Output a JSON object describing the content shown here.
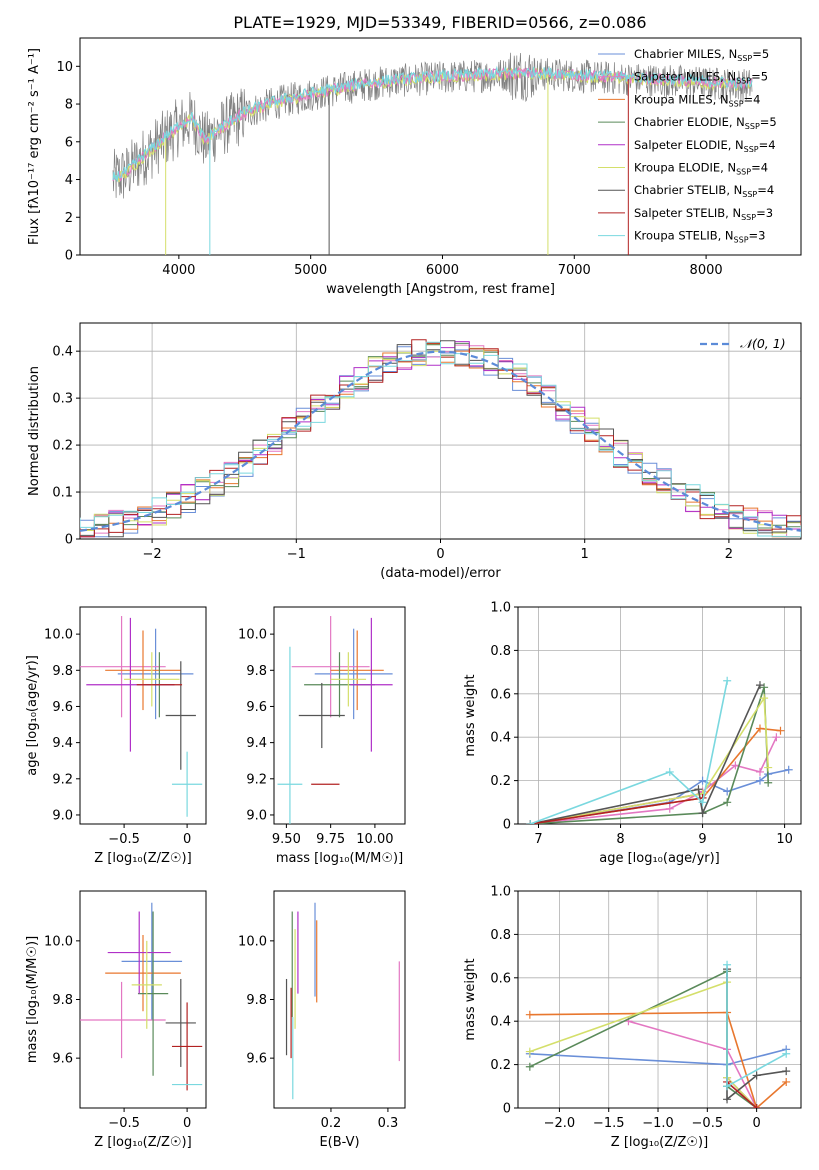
{
  "page_title": "PLATE=1929, MJD=53349, FIBERID=0566, z=0.086",
  "colors": {
    "chabrier_miles": "#6a8fd8",
    "salpeter_miles": "#e377c2",
    "kroupa_miles": "#e8772e",
    "chabrier_elodie": "#5a8a5a",
    "salpeter_elodie": "#b030c8",
    "kroupa_elodie": "#d4df6a",
    "chabrier_stelib": "#555555",
    "salpeter_stelib": "#b22222",
    "kroupa_stelib": "#7ad8df",
    "gaussian": "#5b8bd8",
    "grid": "#b0b0b0"
  },
  "chart_data": [
    {
      "id": "spectrum",
      "type": "line",
      "xlabel": "wavelength [Angstrom, rest frame]",
      "ylabel": "Flux [fλ10⁻¹⁷ erg cm⁻² s⁻¹ A⁻¹]",
      "xlim": [
        3250,
        8720
      ],
      "ylim": [
        0,
        11.5
      ],
      "xticks": [
        4000,
        5000,
        6000,
        7000,
        8000
      ],
      "yticks": [
        0,
        2,
        4,
        6,
        8,
        10
      ],
      "grid": false,
      "legend_placement": "right",
      "legend": [
        {
          "label": "Chabrier MILES, N",
          "sub": "SSP",
          "eq": "=5",
          "color_key": "chabrier_miles"
        },
        {
          "label": "Salpeter MILES, N",
          "sub": "SSP",
          "eq": "=5",
          "color_key": "salpeter_miles"
        },
        {
          "label": "Kroupa MILES, N",
          "sub": "SSP",
          "eq": "=4",
          "color_key": "kroupa_miles"
        },
        {
          "label": "Chabrier ELODIE, N",
          "sub": "SSP",
          "eq": "=5",
          "color_key": "chabrier_elodie"
        },
        {
          "label": "Salpeter ELODIE, N",
          "sub": "SSP",
          "eq": "=4",
          "color_key": "salpeter_elodie"
        },
        {
          "label": "Kroupa ELODIE, N",
          "sub": "SSP",
          "eq": "=4",
          "color_key": "kroupa_elodie"
        },
        {
          "label": "Chabrier STELIB, N",
          "sub": "SSP",
          "eq": "=4",
          "color_key": "chabrier_stelib"
        },
        {
          "label": "Salpeter STELIB, N",
          "sub": "SSP",
          "eq": "=3",
          "color_key": "salpeter_stelib"
        },
        {
          "label": "Kroupa STELIB, N",
          "sub": "SSP",
          "eq": "=3",
          "color_key": "kroupa_stelib"
        }
      ],
      "data_trend": {
        "x": [
          3500,
          3600,
          3700,
          3800,
          3900,
          4000,
          4100,
          4200,
          4300,
          4500,
          4700,
          5000,
          5300,
          5600,
          6000,
          6300,
          6600,
          6900,
          7200,
          7500,
          7800,
          8000,
          8300
        ],
        "y": [
          4.0,
          4.3,
          5.0,
          5.6,
          6.2,
          6.8,
          7.2,
          6.0,
          6.6,
          7.5,
          8.0,
          8.5,
          8.9,
          9.2,
          9.4,
          9.5,
          9.6,
          9.55,
          9.4,
          9.3,
          9.2,
          9.1,
          9.0
        ]
      }
    },
    {
      "id": "residuals",
      "type": "histogram",
      "xlabel": "(data-model)/error",
      "ylabel": "Normed distribution",
      "xlim": [
        -2.5,
        2.5
      ],
      "ylim": [
        0,
        0.46
      ],
      "xticks": [
        -2,
        -1,
        0,
        1,
        2
      ],
      "yticks": [
        0.0,
        0.1,
        0.2,
        0.3,
        0.4
      ],
      "grid": true,
      "legend": [
        {
          "label": "𝒩(0, 1)",
          "color_key": "gaussian"
        }
      ],
      "legend_placement": "top-right"
    },
    {
      "id": "age_vs_Z",
      "type": "errorbar",
      "xlabel": "Z [log₁₀(Z/Z☉)]",
      "ylabel": "age  [log₁₀(age/yr)]",
      "xlim": [
        -0.85,
        0.15
      ],
      "ylim": [
        8.95,
        10.15
      ],
      "xticks": [
        -0.5,
        0.0
      ],
      "yticks": [
        9.0,
        9.2,
        9.4,
        9.6,
        9.8,
        10.0
      ],
      "points": [
        {
          "color_key": "chabrier_miles",
          "x": -0.25,
          "xerr": 0.3,
          "y": 9.78,
          "yerr": 0.25
        },
        {
          "color_key": "salpeter_miles",
          "x": -0.52,
          "xerr": 0.35,
          "y": 9.82,
          "yerr": 0.28
        },
        {
          "color_key": "kroupa_miles",
          "x": -0.35,
          "xerr": 0.3,
          "y": 9.8,
          "yerr": 0.22
        },
        {
          "color_key": "chabrier_elodie",
          "x": -0.22,
          "xerr": 0.12,
          "y": 9.72,
          "yerr": 0.18
        },
        {
          "color_key": "salpeter_elodie",
          "x": -0.45,
          "xerr": 0.35,
          "y": 9.72,
          "yerr": 0.37
        },
        {
          "color_key": "kroupa_elodie",
          "x": -0.28,
          "xerr": 0.22,
          "y": 9.75,
          "yerr": 0.15
        },
        {
          "color_key": "chabrier_stelib",
          "x": -0.05,
          "xerr": 0.12,
          "y": 9.55,
          "yerr": 0.3
        },
        {
          "color_key": "salpeter_stelib",
          "x": -0.22,
          "xerr": 0.18,
          "y": 9.72,
          "yerr": 0.0
        },
        {
          "color_key": "kroupa_stelib",
          "x": 0.0,
          "xerr": 0.12,
          "y": 9.17,
          "yerr": 0.18
        }
      ]
    },
    {
      "id": "age_vs_mass",
      "type": "errorbar",
      "xlabel": "mass [log₁₀(M/M☉)]",
      "ylabel": "",
      "xlim": [
        9.43,
        10.17
      ],
      "ylim": [
        8.95,
        10.15
      ],
      "xticks": [
        9.5,
        9.75,
        10.0
      ],
      "yticks": [
        9.0,
        9.2,
        9.4,
        9.6,
        9.8,
        10.0
      ],
      "points": [
        {
          "color_key": "chabrier_miles",
          "x": 9.88,
          "xerr": 0.22,
          "y": 9.78,
          "yerr": 0.25
        },
        {
          "color_key": "salpeter_miles",
          "x": 9.75,
          "xerr": 0.22,
          "y": 9.82,
          "yerr": 0.28
        },
        {
          "color_key": "kroupa_miles",
          "x": 9.9,
          "xerr": 0.15,
          "y": 9.8,
          "yerr": 0.22
        },
        {
          "color_key": "chabrier_elodie",
          "x": 9.8,
          "xerr": 0.2,
          "y": 9.72,
          "yerr": 0.18
        },
        {
          "color_key": "salpeter_elodie",
          "x": 9.98,
          "xerr": 0.12,
          "y": 9.72,
          "yerr": 0.37
        },
        {
          "color_key": "kroupa_elodie",
          "x": 9.85,
          "xerr": 0.1,
          "y": 9.75,
          "yerr": 0.15
        },
        {
          "color_key": "chabrier_stelib",
          "x": 9.7,
          "xerr": 0.13,
          "y": 9.55,
          "yerr": 0.18
        },
        {
          "color_key": "salpeter_stelib",
          "x": 9.72,
          "xerr": 0.08,
          "y": 9.17,
          "yerr": 0.0
        },
        {
          "color_key": "kroupa_stelib",
          "x": 9.52,
          "xerr": 0.07,
          "y": 9.17,
          "yerr": 0.76
        }
      ]
    },
    {
      "id": "mass_weight_vs_age",
      "type": "line",
      "xlabel": "age  [log₁₀(age/yr)]",
      "ylabel": "mass weight",
      "xlim": [
        6.75,
        10.2
      ],
      "ylim": [
        0,
        1.0
      ],
      "xticks": [
        7,
        8,
        9,
        10
      ],
      "yticks": [
        0.0,
        0.2,
        0.4,
        0.6,
        0.8,
        1.0
      ],
      "grid": true,
      "series": [
        {
          "color_key": "chabrier_miles",
          "x": [
            6.9,
            8.6,
            9.0,
            9.3,
            9.7,
            9.8,
            10.05
          ],
          "y": [
            0.0,
            0.1,
            0.2,
            0.15,
            0.2,
            0.23,
            0.25
          ]
        },
        {
          "color_key": "salpeter_miles",
          "x": [
            6.9,
            8.6,
            9.0,
            9.4,
            9.7,
            9.9
          ],
          "y": [
            0.0,
            0.07,
            0.15,
            0.27,
            0.24,
            0.4
          ]
        },
        {
          "color_key": "kroupa_miles",
          "x": [
            6.9,
            9.0,
            9.7,
            9.95
          ],
          "y": [
            0.0,
            0.12,
            0.44,
            0.43
          ]
        },
        {
          "color_key": "chabrier_elodie",
          "x": [
            6.9,
            9.0,
            9.3,
            9.75,
            9.8
          ],
          "y": [
            0.0,
            0.05,
            0.1,
            0.63,
            0.19
          ]
        },
        {
          "color_key": "salpeter_elodie",
          "x": [
            6.9,
            9.0
          ],
          "y": [
            0.0,
            0.14
          ]
        },
        {
          "color_key": "kroupa_elodie",
          "x": [
            6.9,
            9.0,
            9.75,
            9.8
          ],
          "y": [
            0.0,
            0.14,
            0.58,
            0.26
          ]
        },
        {
          "color_key": "chabrier_stelib",
          "x": [
            6.9,
            8.95,
            9.0,
            9.7
          ],
          "y": [
            0.0,
            0.16,
            0.05,
            0.64
          ]
        },
        {
          "color_key": "salpeter_stelib",
          "x": [
            6.9,
            9.0
          ],
          "y": [
            0.0,
            0.12
          ]
        },
        {
          "color_key": "kroupa_stelib",
          "x": [
            6.9,
            8.6,
            9.0,
            9.3
          ],
          "y": [
            0.0,
            0.24,
            0.1,
            0.66
          ]
        }
      ]
    },
    {
      "id": "mass_vs_Z",
      "type": "errorbar",
      "xlabel": "Z [log₁₀(Z/Z☉)]",
      "ylabel": "mass [log₁₀(M/M☉)]",
      "xlim": [
        -0.85,
        0.15
      ],
      "ylim": [
        9.43,
        10.17
      ],
      "xticks": [
        -0.5,
        0.0
      ],
      "yticks": [
        9.6,
        9.8,
        10.0
      ],
      "points": [
        {
          "color_key": "chabrier_miles",
          "x": -0.28,
          "xerr": 0.24,
          "y": 9.93,
          "yerr": 0.2
        },
        {
          "color_key": "salpeter_miles",
          "x": -0.52,
          "xerr": 0.35,
          "y": 9.73,
          "yerr": 0.13
        },
        {
          "color_key": "kroupa_miles",
          "x": -0.35,
          "xerr": 0.3,
          "y": 9.89,
          "yerr": 0.13
        },
        {
          "color_key": "chabrier_elodie",
          "x": -0.27,
          "xerr": 0.12,
          "y": 9.82,
          "yerr": 0.28
        },
        {
          "color_key": "salpeter_elodie",
          "x": -0.38,
          "xerr": 0.25,
          "y": 9.96,
          "yerr": 0.14
        },
        {
          "color_key": "kroupa_elodie",
          "x": -0.32,
          "xerr": 0.12,
          "y": 9.85,
          "yerr": 0.15
        },
        {
          "color_key": "chabrier_stelib",
          "x": -0.05,
          "xerr": 0.12,
          "y": 9.72,
          "yerr": 0.15
        },
        {
          "color_key": "salpeter_stelib",
          "x": 0.0,
          "xerr": 0.12,
          "y": 9.64,
          "yerr": 0.15
        },
        {
          "color_key": "kroupa_stelib",
          "x": 0.0,
          "xerr": 0.12,
          "y": 9.51,
          "yerr": 0.0
        }
      ]
    },
    {
      "id": "mass_vs_ebv",
      "type": "errorbar",
      "xlabel": "E(B-V)",
      "ylabel": "",
      "xlim": [
        0.1,
        0.33
      ],
      "ylim": [
        9.43,
        10.17
      ],
      "xticks": [
        0.2,
        0.3
      ],
      "yticks": [
        9.6,
        9.8,
        10.0
      ],
      "points": [
        {
          "color_key": "chabrier_miles",
          "x": 0.172,
          "xerr": 0.0,
          "y": 9.97,
          "yerr": 0.16
        },
        {
          "color_key": "salpeter_miles",
          "x": 0.32,
          "xerr": 0.0,
          "y": 9.76,
          "yerr": 0.17
        },
        {
          "color_key": "kroupa_miles",
          "x": 0.175,
          "xerr": 0.0,
          "y": 9.93,
          "yerr": 0.14
        },
        {
          "color_key": "chabrier_elodie",
          "x": 0.132,
          "xerr": 0.0,
          "y": 9.92,
          "yerr": 0.18
        },
        {
          "color_key": "salpeter_elodie",
          "x": 0.142,
          "xerr": 0.0,
          "y": 9.96,
          "yerr": 0.14
        },
        {
          "color_key": "kroupa_elodie",
          "x": 0.137,
          "xerr": 0.0,
          "y": 9.87,
          "yerr": 0.17
        },
        {
          "color_key": "chabrier_stelib",
          "x": 0.122,
          "xerr": 0.0,
          "y": 9.74,
          "yerr": 0.13
        },
        {
          "color_key": "salpeter_stelib",
          "x": 0.13,
          "xerr": 0.0,
          "y": 9.72,
          "yerr": 0.12
        },
        {
          "color_key": "kroupa_stelib",
          "x": 0.133,
          "xerr": 0.0,
          "y": 9.6,
          "yerr": 0.14
        }
      ]
    },
    {
      "id": "mass_weight_vs_Z",
      "type": "line",
      "xlabel": "Z [log₁₀(Z/Z☉)]",
      "ylabel": "mass weight",
      "xlim": [
        -2.42,
        0.45
      ],
      "ylim": [
        0,
        1.0
      ],
      "xticks": [
        -2.0,
        -1.5,
        -1.0,
        -0.5,
        0.0
      ],
      "yticks": [
        0.0,
        0.2,
        0.4,
        0.6,
        0.8,
        1.0
      ],
      "grid": true,
      "series": [
        {
          "color_key": "chabrier_miles",
          "x": [
            -2.3,
            -0.3,
            0.3
          ],
          "y": [
            0.25,
            0.2,
            0.27
          ]
        },
        {
          "color_key": "salpeter_miles",
          "x": [
            -1.3,
            -0.3,
            0.0
          ],
          "y": [
            0.4,
            0.27,
            0.0
          ]
        },
        {
          "color_key": "kroupa_miles",
          "x": [
            -2.3,
            -0.3,
            0.0,
            0.3
          ],
          "y": [
            0.43,
            0.44,
            0.0,
            0.12
          ]
        },
        {
          "color_key": "chabrier_elodie",
          "x": [
            -2.3,
            -0.3,
            -0.3,
            0.0
          ],
          "y": [
            0.19,
            0.63,
            0.1,
            0.0
          ]
        },
        {
          "color_key": "salpeter_elodie",
          "x": [
            -0.3,
            0.0
          ],
          "y": [
            0.14,
            0.0
          ]
        },
        {
          "color_key": "kroupa_elodie",
          "x": [
            -2.3,
            -0.3,
            -0.3,
            0.0
          ],
          "y": [
            0.26,
            0.58,
            0.14,
            0.0
          ]
        },
        {
          "color_key": "chabrier_stelib",
          "x": [
            -0.3,
            -0.3,
            0.0,
            0.3
          ],
          "y": [
            0.64,
            0.04,
            0.15,
            0.17
          ]
        },
        {
          "color_key": "salpeter_stelib",
          "x": [
            -0.3,
            0.0
          ],
          "y": [
            0.12,
            0.0
          ]
        },
        {
          "color_key": "kroupa_stelib",
          "x": [
            -0.3,
            -0.3,
            0.3
          ],
          "y": [
            0.66,
            0.1,
            0.25
          ]
        }
      ]
    }
  ]
}
